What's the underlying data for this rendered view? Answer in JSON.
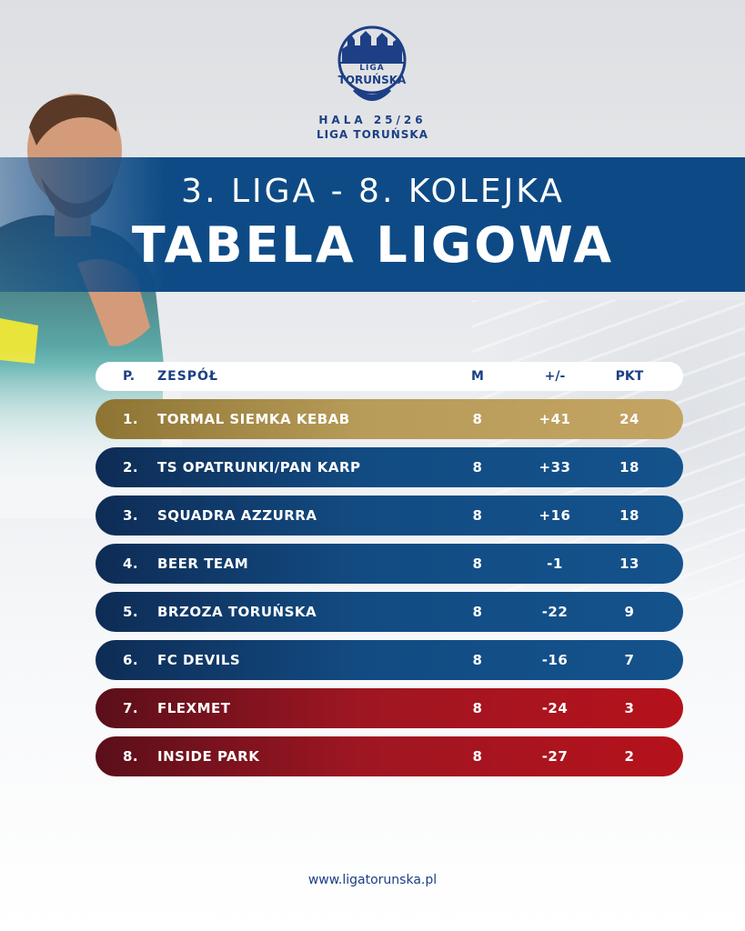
{
  "logo": {
    "line1": "LIGA",
    "line2": "TORUŃSKA"
  },
  "season": "HALA 25/26",
  "league_small": "LIGA TORUŃSKA",
  "subtitle": "3. LIGA - 8. KOLEJKA",
  "title": "TABELA LIGOWA",
  "table": {
    "headers": {
      "pos": "P.",
      "team": "ZESPÓŁ",
      "m": "M",
      "gd": "+/-",
      "pts": "PKT"
    },
    "rows": [
      {
        "pos": "1.",
        "team": "TORMAL SIEMKA KEBAB",
        "m": "8",
        "gd": "+41",
        "pts": "24",
        "tier": "gold"
      },
      {
        "pos": "2.",
        "team": "TS OPATRUNKI/PAN KARP",
        "m": "8",
        "gd": "+33",
        "pts": "18",
        "tier": "blue"
      },
      {
        "pos": "3.",
        "team": "SQUADRA AZZURRA",
        "m": "8",
        "gd": "+16",
        "pts": "18",
        "tier": "blue"
      },
      {
        "pos": "4.",
        "team": "BEER TEAM",
        "m": "8",
        "gd": "-1",
        "pts": "13",
        "tier": "blue"
      },
      {
        "pos": "5.",
        "team": "BRZOZA TORUŃSKA",
        "m": "8",
        "gd": "-22",
        "pts": "9",
        "tier": "blue"
      },
      {
        "pos": "6.",
        "team": "FC DEVILS",
        "m": "8",
        "gd": "-16",
        "pts": "7",
        "tier": "blue"
      },
      {
        "pos": "7.",
        "team": "FLEXMET",
        "m": "8",
        "gd": "-24",
        "pts": "3",
        "tier": "red"
      },
      {
        "pos": "8.",
        "team": "INSIDE PARK",
        "m": "8",
        "gd": "-27",
        "pts": "2",
        "tier": "red"
      }
    ]
  },
  "footer": "www.ligatorunska.pl",
  "colors": {
    "brand_blue": "#0d4a85",
    "text_blue": "#1c3f86",
    "gold": "#b79b58",
    "red": "#b5121b"
  }
}
